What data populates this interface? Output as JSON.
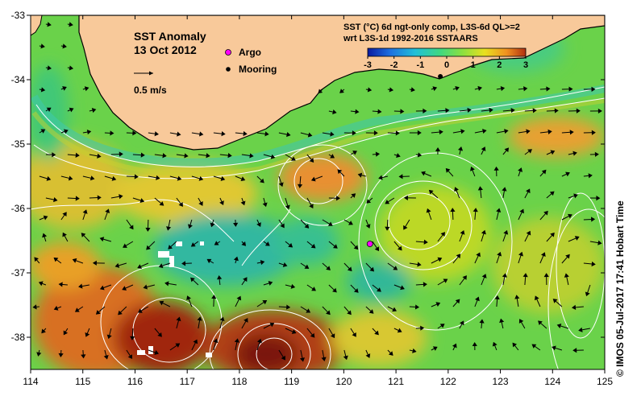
{
  "title": {
    "line1": "SST Anomaly",
    "line2": "13 Oct 2012"
  },
  "vector_key": {
    "label": "0.5 m/s"
  },
  "legend": {
    "items": [
      {
        "label": "Argo",
        "symbol": "argo-float-marker",
        "color": "#ff00ff"
      },
      {
        "label": "Mooring",
        "symbol": "mooring-marker",
        "color": "#000000"
      }
    ]
  },
  "colorbar": {
    "title_line1": "SST (°C) 6d ngt-only comp, L3S-6d QL>=2",
    "title_line2": "wrt L3S-1d 1992-2016 SSTAARS",
    "min": -3,
    "max": 3,
    "ticks": [
      "-3",
      "-2",
      "-1",
      "0",
      "1",
      "2",
      "3"
    ],
    "colors": [
      "#0a1aa0",
      "#1e6fe0",
      "#22c0d8",
      "#40d880",
      "#8ce040",
      "#e8e020",
      "#f09020",
      "#b03010"
    ]
  },
  "axes": {
    "x_ticks": [
      "114",
      "115",
      "116",
      "117",
      "118",
      "119",
      "120",
      "121",
      "122",
      "123",
      "124",
      "125"
    ],
    "y_ticks": [
      "-33",
      "-34",
      "-35",
      "-36",
      "-37",
      "-38"
    ],
    "x_range": [
      114,
      125
    ],
    "y_range": [
      -38.5,
      -33
    ]
  },
  "markers": {
    "argo": {
      "lon": 120.5,
      "lat": -36.55
    },
    "mooring": {
      "lon": 121.85,
      "lat": -33.95
    }
  },
  "colors": {
    "land": "#f8c99a",
    "coast": "#000000",
    "contour": "#ffffff",
    "vector": "#000000"
  },
  "credit": "© IMOS 05-Jul-2017 17:41 Hobart Time"
}
